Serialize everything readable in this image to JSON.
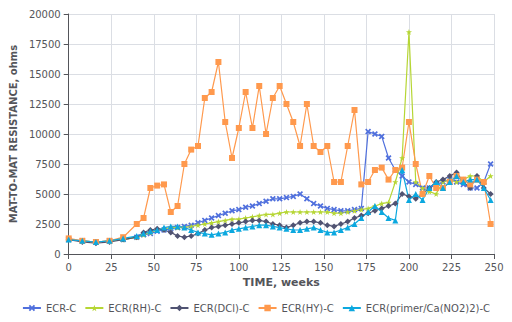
{
  "chart_data": {
    "type": "line",
    "xlabel": "TIME, weeks",
    "ylabel": "MAT-TO-MAT RESISTANCE, ohms",
    "xlim": [
      0,
      250
    ],
    "ylim": [
      0,
      20000
    ],
    "xticks": [
      0,
      25,
      50,
      75,
      100,
      125,
      150,
      175,
      200,
      225,
      250
    ],
    "yticks": [
      0,
      2500,
      5000,
      7500,
      10000,
      12500,
      15000,
      17500,
      20000
    ],
    "grid": true,
    "legend": "bottom",
    "x": [
      0,
      8,
      16,
      24,
      32,
      40,
      44,
      48,
      52,
      56,
      60,
      64,
      68,
      72,
      76,
      80,
      84,
      88,
      92,
      96,
      100,
      104,
      108,
      112,
      116,
      120,
      124,
      128,
      132,
      136,
      140,
      144,
      148,
      152,
      156,
      160,
      164,
      168,
      172,
      176,
      180,
      184,
      188,
      192,
      196,
      200,
      204,
      208,
      212,
      216,
      220,
      224,
      228,
      232,
      236,
      240,
      244,
      248
    ],
    "series": [
      {
        "name": "ECR-C",
        "marker": "x",
        "values": [
          1200,
          1100,
          1000,
          1100,
          1200,
          1400,
          1600,
          1700,
          1900,
          2000,
          2100,
          2200,
          2300,
          2400,
          2600,
          2800,
          3000,
          3200,
          3400,
          3600,
          3700,
          3900,
          4000,
          4200,
          4400,
          4600,
          4600,
          4700,
          4800,
          5000,
          4600,
          4200,
          4000,
          3800,
          3700,
          3600,
          3600,
          3700,
          3800,
          10200,
          10000,
          9800,
          8000,
          7000,
          6500,
          6000,
          5800,
          5500,
          5500,
          5800,
          6000,
          6200,
          6000,
          5800,
          5500,
          5500,
          6000,
          7500
        ]
      },
      {
        "name": "ECR(RH)-C",
        "marker": "star",
        "values": [
          1200,
          1100,
          1000,
          1100,
          1200,
          1400,
          1600,
          1800,
          2000,
          2100,
          2200,
          2200,
          2200,
          2300,
          2400,
          2500,
          2600,
          2700,
          2800,
          2900,
          2900,
          3000,
          3100,
          3200,
          3300,
          3300,
          3400,
          3500,
          3500,
          3500,
          3500,
          3500,
          3500,
          3500,
          3400,
          3400,
          3500,
          3600,
          3700,
          3800,
          4000,
          4200,
          4300,
          6000,
          8000,
          18500,
          6000,
          5500,
          5200,
          5000,
          6000,
          6200,
          6000,
          6200,
          6500,
          6500,
          6000,
          6500
        ]
      },
      {
        "name": "ECR(DCl)-C",
        "marker": "diamond",
        "values": [
          1200,
          1000,
          900,
          1000,
          1200,
          1400,
          1800,
          2000,
          2100,
          2000,
          1800,
          1500,
          1400,
          1500,
          1700,
          2000,
          2200,
          2300,
          2400,
          2500,
          2600,
          2700,
          2800,
          2800,
          2700,
          2500,
          2400,
          2200,
          2400,
          2600,
          2700,
          2700,
          2600,
          2400,
          2300,
          2500,
          2700,
          3000,
          3200,
          3400,
          3600,
          3800,
          4000,
          4200,
          5000,
          4800,
          4600,
          5000,
          5500,
          6000,
          6200,
          6500,
          6800,
          6000,
          5500,
          6500,
          5500,
          5000
        ]
      },
      {
        "name": "ECR(HY)-C",
        "marker": "square",
        "values": [
          1300,
          1100,
          1000,
          1100,
          1400,
          2500,
          3000,
          5500,
          5700,
          5800,
          3500,
          4000,
          7500,
          8700,
          9000,
          13000,
          13500,
          16000,
          11000,
          8000,
          10500,
          13500,
          10500,
          14000,
          10000,
          13000,
          14000,
          12500,
          11000,
          9000,
          12500,
          9000,
          8500,
          9000,
          6000,
          6000,
          9000,
          12000,
          5800,
          6000,
          7000,
          7200,
          6200,
          7000,
          7200,
          11000,
          7500,
          5000,
          6500,
          5500,
          5500,
          6000,
          6500,
          6200,
          5800,
          6200,
          6000,
          2500
        ]
      },
      {
        "name": "ECR(primer/Ca(NO2)2)-C",
        "marker": "triangle",
        "values": [
          1200,
          1100,
          1000,
          1100,
          1300,
          1500,
          1700,
          1900,
          2000,
          2200,
          2300,
          2300,
          2200,
          2000,
          1800,
          1700,
          1600,
          1700,
          1800,
          2000,
          2100,
          2200,
          2300,
          2400,
          2400,
          2300,
          2200,
          2100,
          2000,
          2000,
          2100,
          2200,
          2000,
          1800,
          1800,
          2000,
          2200,
          2500,
          3000,
          3500,
          4000,
          3500,
          3000,
          2800,
          7000,
          4500,
          5000,
          4500,
          5500,
          6000,
          5500,
          6000,
          6500,
          6000,
          6200,
          6200,
          5500,
          4500
        ]
      }
    ]
  }
}
